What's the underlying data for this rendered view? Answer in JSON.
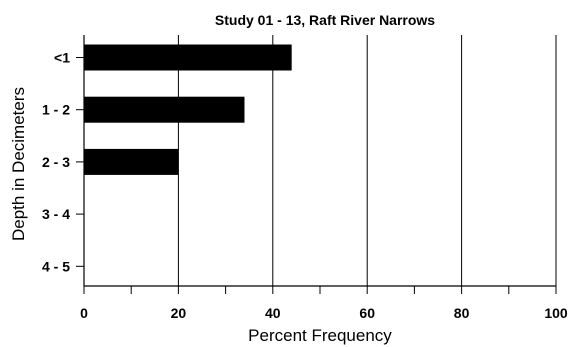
{
  "chart_data": {
    "type": "bar",
    "orientation": "horizontal",
    "title": "Study 01 - 13, Raft River Narrows",
    "xlabel": "Percent Frequency",
    "ylabel": "Depth in Decimeters",
    "categories": [
      "<1",
      "1 - 2",
      "2 - 3",
      "3 - 4",
      "4 - 5"
    ],
    "values": [
      44,
      34,
      20,
      0,
      0
    ],
    "xlim": [
      0,
      100
    ],
    "x_major_ticks": [
      0,
      20,
      40,
      60,
      80,
      100
    ],
    "x_minor_ticks": [
      10,
      30,
      50,
      70,
      90
    ],
    "x_tick_labels": [
      "0",
      "20",
      "40",
      "60",
      "80",
      "100"
    ],
    "grid": "vertical major gridlines",
    "bar_color": "#000000"
  }
}
